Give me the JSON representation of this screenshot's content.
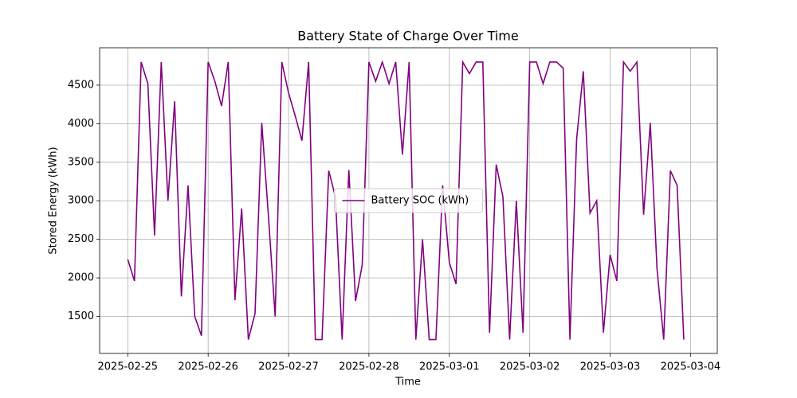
{
  "chart_data": {
    "type": "line",
    "title": "Battery State of Charge Over Time",
    "x_label": "Time",
    "y_label": "Stored Energy (kWh)",
    "x": [
      0,
      2,
      4,
      6,
      8,
      10,
      12,
      14,
      16,
      18,
      20,
      22,
      24,
      26,
      28,
      30,
      32,
      34,
      36,
      38,
      40,
      42,
      44,
      46,
      48,
      50,
      52,
      54,
      56,
      58,
      60,
      62,
      64,
      66,
      68,
      70,
      72,
      74,
      76,
      78,
      80,
      82,
      84,
      86,
      88,
      90,
      92,
      94,
      96,
      98,
      100,
      102,
      104,
      106,
      108,
      110,
      112,
      114,
      116,
      118,
      120,
      122,
      124,
      126,
      128,
      130,
      132,
      134,
      136,
      138,
      140,
      142,
      144,
      146,
      148,
      150,
      152,
      154,
      156,
      158,
      160,
      162,
      164,
      166
    ],
    "series": [
      {
        "name": "Battery SOC (kWh)",
        "color": "#800080",
        "values": [
          2240,
          1960,
          4800,
          4520,
          2550,
          4800,
          3000,
          4290,
          1760,
          3200,
          1500,
          1250,
          4800,
          4550,
          4230,
          4800,
          1710,
          2900,
          1200,
          1540,
          4010,
          2800,
          1500,
          4800,
          4400,
          4100,
          3780,
          4800,
          1200,
          1200,
          3390,
          3050,
          1200,
          3400,
          1700,
          2170,
          4800,
          4550,
          4800,
          4520,
          4800,
          3600,
          4800,
          1200,
          2500,
          1200,
          1200,
          3200,
          2200,
          1920,
          4800,
          4650,
          4800,
          4800,
          1290,
          3470,
          3050,
          1200,
          3000,
          1290,
          4800,
          4800,
          4520,
          4800,
          4800,
          4720,
          1200,
          3800,
          4680,
          2840,
          3000,
          1290,
          2300,
          1960,
          4800,
          4680,
          4800,
          2820,
          4010,
          2120,
          1200,
          3390,
          3200,
          1200
        ]
      }
    ],
    "xlim": [
      -8.4,
      176
    ],
    "xticks": [
      {
        "value": 0,
        "label": "2025-02-25"
      },
      {
        "value": 24,
        "label": "2025-02-26"
      },
      {
        "value": 48,
        "label": "2025-02-27"
      },
      {
        "value": 72,
        "label": "2025-02-28"
      },
      {
        "value": 96,
        "label": "2025-03-01"
      },
      {
        "value": 120,
        "label": "2025-03-02"
      },
      {
        "value": 144,
        "label": "2025-03-03"
      },
      {
        "value": 168,
        "label": "2025-03-04"
      }
    ],
    "ylim": [
      1020,
      4985
    ],
    "yticks": [
      1500,
      2000,
      2500,
      3000,
      3500,
      4000,
      4500
    ],
    "grid": true,
    "legend": "center"
  }
}
